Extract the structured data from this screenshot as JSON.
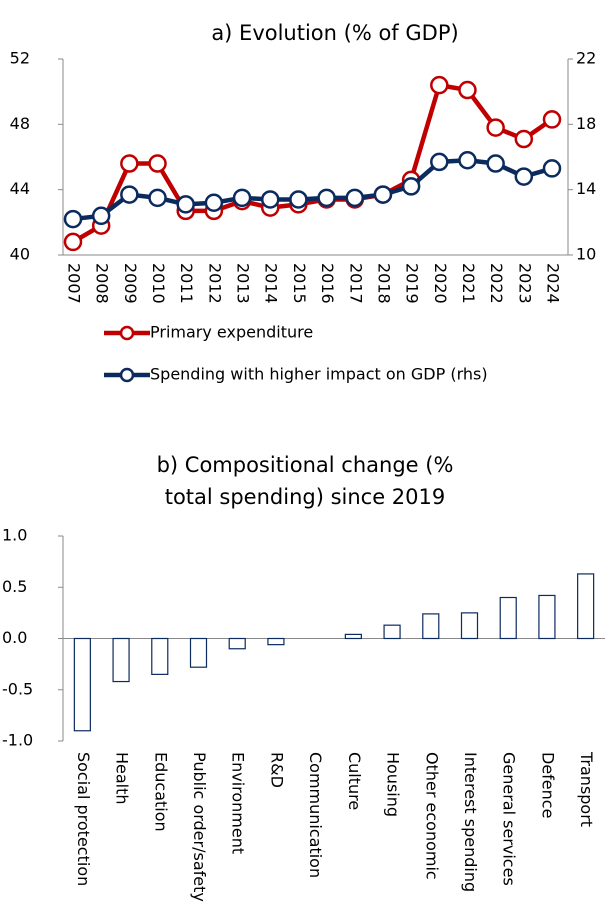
{
  "chart_data": [
    {
      "type": "line",
      "title": "a) Evolution (% of GDP)",
      "categories": [
        "2007",
        "2008",
        "2009",
        "2010",
        "2011",
        "2012",
        "2013",
        "2014",
        "2015",
        "2016",
        "2017",
        "2018",
        "2019",
        "2020",
        "2021",
        "2022",
        "2023",
        "2024"
      ],
      "series": [
        {
          "name": "Primary expenditure",
          "color": "#c00000",
          "values": [
            40.8,
            41.8,
            45.6,
            45.6,
            42.7,
            42.7,
            43.3,
            42.9,
            43.1,
            43.4,
            43.4,
            43.7,
            44.6,
            50.4,
            50.1,
            47.8,
            47.1,
            48.3
          ]
        },
        {
          "name": "Spending with higher impact on GDP (rhs)",
          "color": "#0b2a5e",
          "axis": "y2",
          "values": [
            12.2,
            12.4,
            13.7,
            13.5,
            13.1,
            13.2,
            13.5,
            13.4,
            13.4,
            13.5,
            13.5,
            13.7,
            14.2,
            15.7,
            15.8,
            15.6,
            14.8,
            15.3
          ]
        }
      ],
      "ylim": [
        40,
        52
      ],
      "yticks": [
        40,
        44,
        48,
        52
      ],
      "y2lim": [
        10,
        22
      ],
      "y2ticks": [
        10,
        14,
        18,
        22
      ]
    },
    {
      "type": "bar",
      "title": "b) Compositional change (% total spending) since 2019",
      "categories": [
        "Social protection",
        "Health",
        "Education",
        "Public order/safety",
        "Environment",
        "R&D",
        "Communication",
        "Culture",
        "Housing",
        "Other economic",
        "Interest spending",
        "General services",
        "Defence",
        "Transport"
      ],
      "values": [
        -0.9,
        -0.42,
        -0.35,
        -0.28,
        -0.1,
        -0.06,
        0,
        0.04,
        0.13,
        0.24,
        0.25,
        0.4,
        0.42,
        0.63
      ],
      "color": "#0b2a5e",
      "ylim": [
        -1,
        1
      ],
      "yticks": [
        {
          "value": -1,
          "label": "-1.0"
        },
        -0.5,
        {
          "value": 0,
          "label": "0.0"
        },
        0.5,
        {
          "value": 1,
          "label": "1.0"
        }
      ]
    }
  ]
}
